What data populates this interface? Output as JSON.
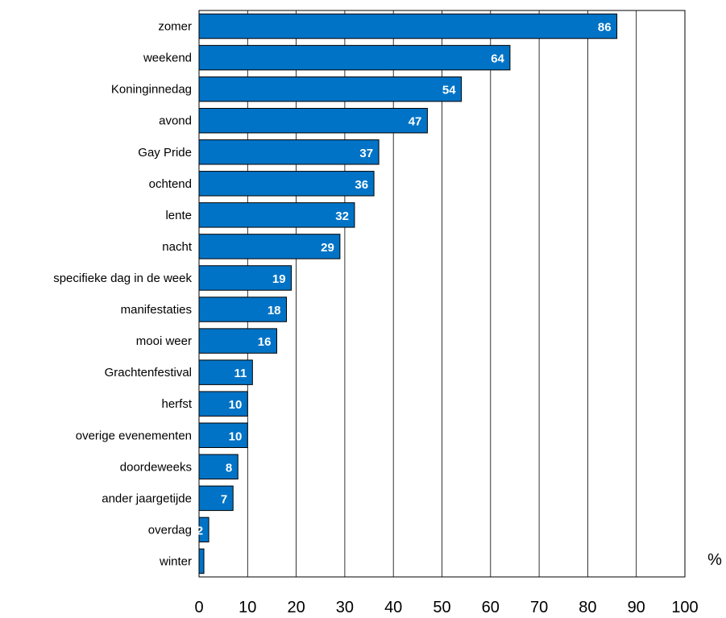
{
  "chart_data": {
    "type": "bar",
    "orientation": "horizontal",
    "categories": [
      "zomer",
      "weekend",
      "Koninginnedag",
      "avond",
      "Gay Pride",
      "ochtend",
      "lente",
      "nacht",
      "specifieke dag in de week",
      "manifestaties",
      "mooi weer",
      "Grachtenfestival",
      "herfst",
      "overige evenementen",
      "doordeweeks",
      "ander jaargetijde",
      "overdag",
      "winter"
    ],
    "values": [
      86,
      64,
      54,
      47,
      37,
      36,
      32,
      29,
      19,
      18,
      16,
      11,
      10,
      10,
      8,
      7,
      2,
      1
    ],
    "data_labels": [
      "86",
      "64",
      "54",
      "47",
      "37",
      "36",
      "32",
      "29",
      "19",
      "18",
      "16",
      "11",
      "10",
      "10",
      "8",
      "7",
      "2",
      ""
    ],
    "xlim": [
      0,
      100
    ],
    "xticks": [
      0,
      10,
      20,
      30,
      40,
      50,
      60,
      70,
      80,
      90,
      100
    ],
    "unit_label": "%",
    "grid": true,
    "bar_color": "#0073c6",
    "bar_edge_color": "#000000",
    "label_color": "#ffffff"
  }
}
